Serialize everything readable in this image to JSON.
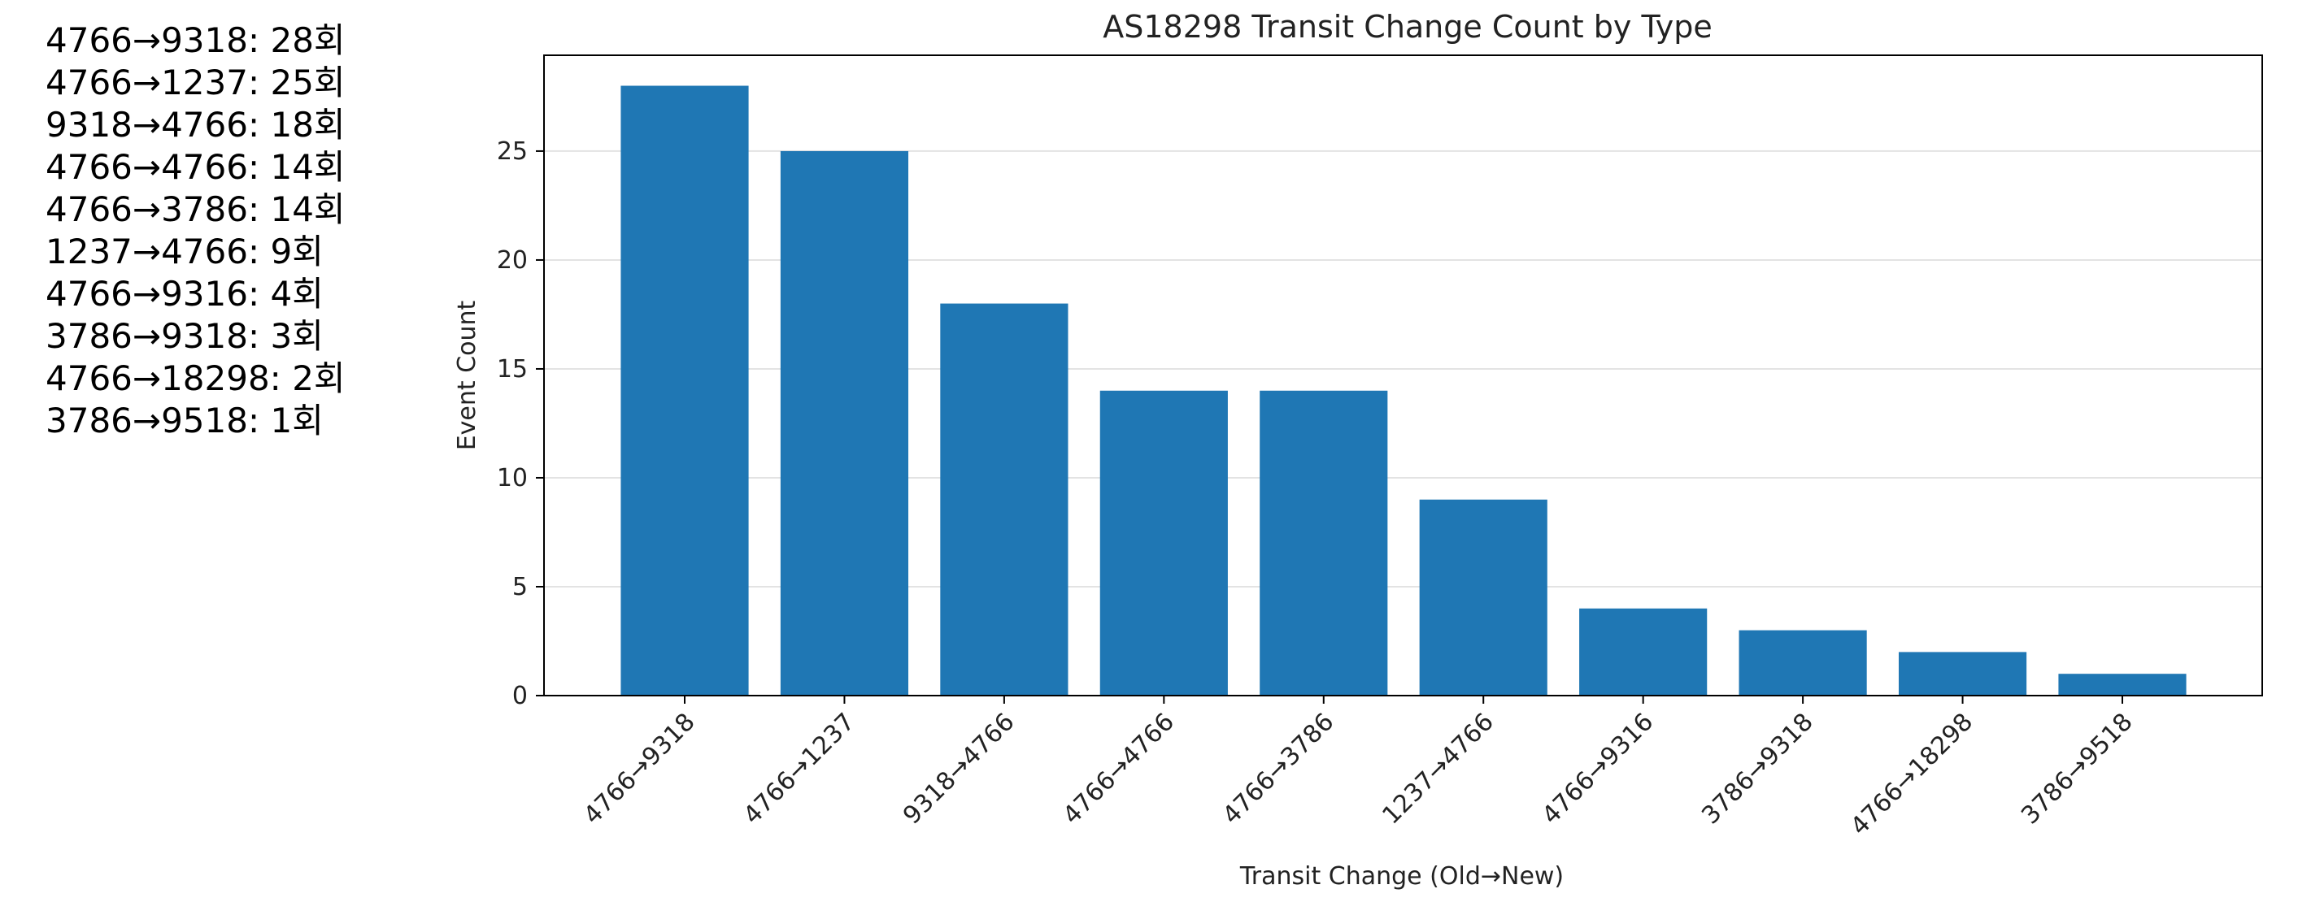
{
  "summary_list": [
    "4766→9318: 28회",
    "4766→1237: 25회",
    "9318→4766: 18회",
    "4766→4766: 14회",
    "4766→3786: 14회",
    "1237→4766: 9회",
    "4766→9316: 4회",
    "3786→9318: 3회",
    "4766→18298: 2회",
    "3786→9518: 1회"
  ],
  "chart_data": {
    "type": "bar",
    "title": "AS18298 Transit Change Count by Type",
    "xlabel": "Transit Change (Old→New)",
    "ylabel": "Event Count",
    "categories": [
      "4766→9318",
      "4766→1237",
      "9318→4766",
      "4766→4766",
      "4766→3786",
      "1237→4766",
      "4766→9316",
      "3786→9318",
      "4766→18298",
      "3786→9518"
    ],
    "values": [
      28,
      25,
      18,
      14,
      14,
      9,
      4,
      3,
      2,
      1
    ],
    "ylim": [
      0,
      29.4
    ],
    "yticks": [
      0,
      5,
      10,
      15,
      20,
      25
    ],
    "bar_color": "#1f77b4",
    "grid": "horizontal",
    "legend": "none"
  }
}
